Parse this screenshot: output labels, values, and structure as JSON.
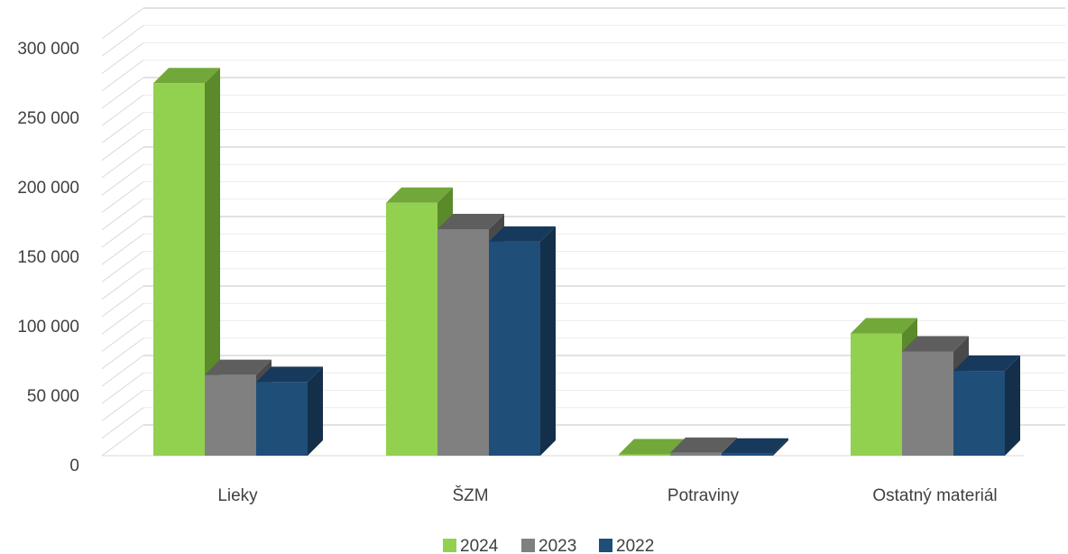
{
  "chart_data": {
    "type": "bar",
    "categories": [
      "Lieky",
      "ŠZM",
      "Potraviny",
      "Ostatný materiál"
    ],
    "series": [
      {
        "name": "2024",
        "values": [
          268000,
          182000,
          1000,
          88000
        ],
        "color": "#92d050",
        "side": "#5a8a2a",
        "top": "#72a83a"
      },
      {
        "name": "2023",
        "values": [
          58000,
          163000,
          2000,
          75000
        ],
        "color": "#808080",
        "side": "#4a4a4a",
        "top": "#5e5e5e"
      },
      {
        "name": "2022",
        "values": [
          53000,
          154000,
          1500,
          61000
        ],
        "color": "#1f4e79",
        "side": "#142f4a",
        "top": "#173a5c"
      }
    ],
    "yticks": [
      "0",
      "50 000",
      "100 000",
      "150 000",
      "200 000",
      "250 000",
      "300 000"
    ],
    "ylim": [
      0,
      300000
    ],
    "grid": true,
    "legend_position": "bottom",
    "three_d": true
  }
}
